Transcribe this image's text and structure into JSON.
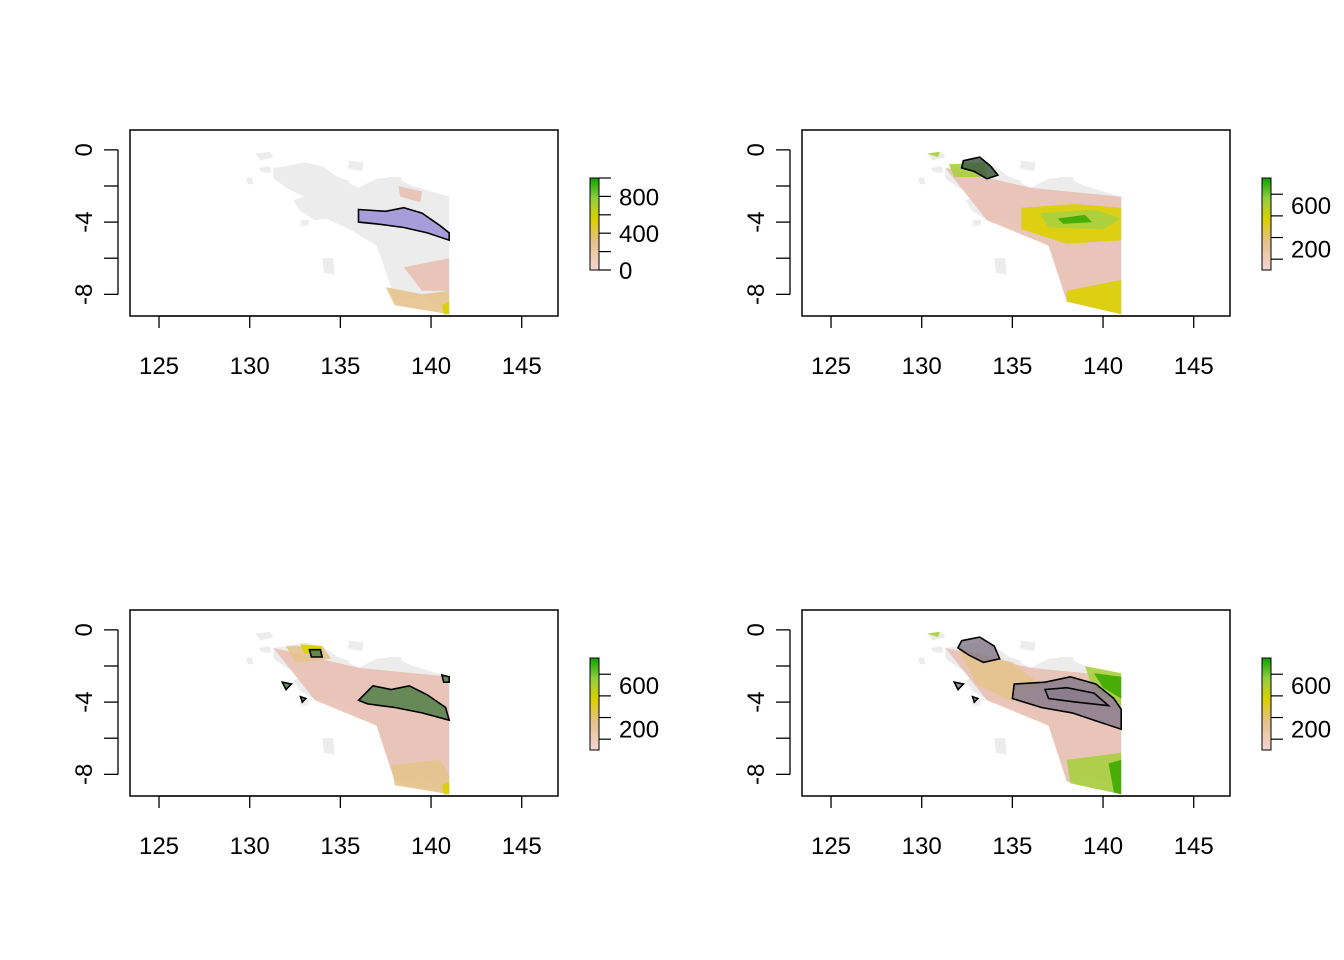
{
  "figure": {
    "panel_count": 4,
    "layout": "2x2 grid",
    "map_description": "raster map of western New Guinea with polygon overlays",
    "panels": [
      {
        "id": "panel-1",
        "x_ticks": [
          "125",
          "130",
          "135",
          "140",
          "145"
        ],
        "y_ticks": [
          "0",
          "-4",
          "-8"
        ],
        "legend_ticks": [
          "800",
          "400",
          "0"
        ],
        "polygon_fill": "#9b8fd8",
        "raster_style": "mostly-grey"
      },
      {
        "id": "panel-2",
        "x_ticks": [
          "125",
          "130",
          "135",
          "140",
          "145"
        ],
        "y_ticks": [
          "0",
          "-4",
          "-8"
        ],
        "legend_ticks": [
          "600",
          "200"
        ],
        "polygon_fill": "#3d5a3d",
        "raster_style": "yellow-green"
      },
      {
        "id": "panel-3",
        "x_ticks": [
          "125",
          "130",
          "135",
          "140",
          "145"
        ],
        "y_ticks": [
          "0",
          "-4",
          "-8"
        ],
        "legend_ticks": [
          "600",
          "200"
        ],
        "polygon_fill": "#4f7f45",
        "raster_style": "pink-beige"
      },
      {
        "id": "panel-4",
        "x_ticks": [
          "125",
          "130",
          "135",
          "140",
          "145"
        ],
        "y_ticks": [
          "0",
          "-4",
          "-8"
        ],
        "legend_ticks": [
          "600",
          "200"
        ],
        "polygon_fill": "#8a7d8c",
        "raster_style": "green-heavy"
      }
    ],
    "colors": {
      "grey_land": "#ececec",
      "pink": "#e8c0b4",
      "beige": "#e6c48e",
      "yellow": "#dcd000",
      "light_green": "#a8d040",
      "green": "#3da800",
      "dark_green": "#1a8a00",
      "outline": "#000000"
    }
  },
  "chart_data": [
    {
      "type": "heatmap",
      "x_axis": {
        "ticks": [
          125,
          130,
          135,
          140,
          145
        ],
        "range": [
          123.4,
          147
        ]
      },
      "y_axis": {
        "ticks": [
          0,
          -4,
          -8
        ],
        "range": [
          -9.2,
          1.1
        ]
      },
      "legend": {
        "ticks": [
          0,
          400,
          800
        ],
        "range": [
          0,
          1000
        ]
      }
    },
    {
      "type": "heatmap",
      "x_axis": {
        "ticks": [
          125,
          130,
          135,
          140,
          145
        ],
        "range": [
          123.4,
          147
        ]
      },
      "y_axis": {
        "ticks": [
          0,
          -4,
          -8
        ],
        "range": [
          -9.2,
          1.1
        ]
      },
      "legend": {
        "ticks": [
          200,
          600
        ],
        "range": [
          0,
          850
        ]
      }
    },
    {
      "type": "heatmap",
      "x_axis": {
        "ticks": [
          125,
          130,
          135,
          140,
          145
        ],
        "range": [
          123.4,
          147
        ]
      },
      "y_axis": {
        "ticks": [
          0,
          -4,
          -8
        ],
        "range": [
          -9.2,
          1.1
        ]
      },
      "legend": {
        "ticks": [
          200,
          600
        ],
        "range": [
          0,
          850
        ]
      }
    },
    {
      "type": "heatmap",
      "x_axis": {
        "ticks": [
          125,
          130,
          135,
          140,
          145
        ],
        "range": [
          123.4,
          147
        ]
      },
      "y_axis": {
        "ticks": [
          0,
          -4,
          -8
        ],
        "range": [
          -9.2,
          1.1
        ]
      },
      "legend": {
        "ticks": [
          200,
          600
        ],
        "range": [
          0,
          850
        ]
      }
    }
  ]
}
